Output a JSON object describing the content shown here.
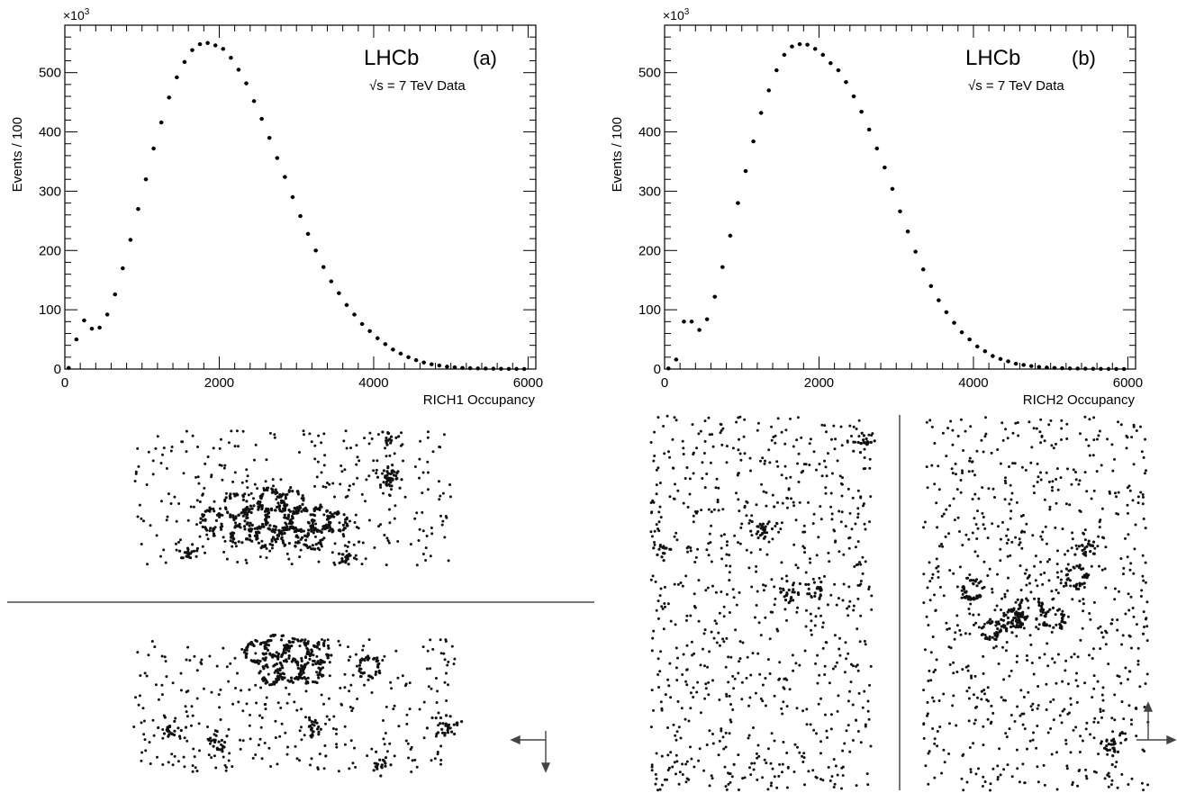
{
  "chart_data": [
    {
      "type": "scatter",
      "panel_label": "(a)",
      "experiment": "LHCb",
      "energy_note": "√s = 7 TeV Data",
      "xlabel": "RICH1 Occupancy",
      "ylabel": "Events / 100",
      "y_multiplier": "×10",
      "y_multiplier_exp": "3",
      "xlim": [
        0,
        6100
      ],
      "ylim": [
        0,
        580
      ],
      "xticks": [
        0,
        2000,
        4000,
        6000
      ],
      "yticks": [
        0,
        100,
        200,
        300,
        400,
        500
      ],
      "grid": false,
      "legend": "none",
      "series": [
        {
          "x": [
            50,
            150,
            250,
            350,
            450,
            550,
            650,
            750,
            850,
            950,
            1050,
            1150,
            1250,
            1350,
            1450,
            1550,
            1650,
            1750,
            1850,
            1950,
            2050,
            2150,
            2250,
            2350,
            2450,
            2550,
            2650,
            2750,
            2850,
            2950,
            3050,
            3150,
            3250,
            3350,
            3450,
            3550,
            3650,
            3750,
            3850,
            3950,
            4050,
            4150,
            4250,
            4350,
            4450,
            4550,
            4650,
            4750,
            4850,
            4950,
            5050,
            5150,
            5250,
            5350,
            5450,
            5550,
            5650,
            5750,
            5850,
            5950
          ],
          "y": [
            2,
            50,
            82,
            68,
            70,
            92,
            126,
            170,
            218,
            270,
            320,
            372,
            416,
            458,
            492,
            518,
            538,
            548,
            550,
            546,
            540,
            525,
            505,
            482,
            452,
            422,
            390,
            356,
            324,
            290,
            258,
            228,
            200,
            172,
            148,
            128,
            108,
            92,
            76,
            64,
            52,
            42,
            33,
            26,
            20,
            15,
            11,
            8,
            6,
            4,
            3,
            2,
            1.5,
            1,
            0.8,
            0.6,
            0.4,
            0.3,
            0.2,
            0.1
          ]
        }
      ]
    },
    {
      "type": "scatter",
      "panel_label": "(b)",
      "experiment": "LHCb",
      "energy_note": "√s = 7 TeV Data",
      "xlabel": "RICH2 Occupancy",
      "ylabel": "Events / 100",
      "y_multiplier": "×10",
      "y_multiplier_exp": "3",
      "xlim": [
        0,
        6100
      ],
      "ylim": [
        0,
        580
      ],
      "xticks": [
        0,
        2000,
        4000,
        6000
      ],
      "yticks": [
        0,
        100,
        200,
        300,
        400,
        500
      ],
      "grid": false,
      "legend": "none",
      "series": [
        {
          "x": [
            50,
            150,
            250,
            350,
            450,
            550,
            650,
            750,
            850,
            950,
            1050,
            1150,
            1250,
            1350,
            1450,
            1550,
            1650,
            1750,
            1850,
            1950,
            2050,
            2150,
            2250,
            2350,
            2450,
            2550,
            2650,
            2750,
            2850,
            2950,
            3050,
            3150,
            3250,
            3350,
            3450,
            3550,
            3650,
            3750,
            3850,
            3950,
            4050,
            4150,
            4250,
            4350,
            4450,
            4550,
            4650,
            4750,
            4850,
            4950,
            5050,
            5150,
            5250,
            5350,
            5450,
            5550,
            5650,
            5750,
            5850,
            5950
          ],
          "y": [
            1,
            16,
            80,
            80,
            66,
            84,
            122,
            172,
            225,
            280,
            334,
            384,
            432,
            470,
            504,
            530,
            544,
            548,
            547,
            540,
            530,
            516,
            504,
            484,
            460,
            434,
            404,
            372,
            340,
            304,
            266,
            232,
            198,
            168,
            140,
            116,
            96,
            78,
            62,
            50,
            38,
            30,
            22,
            17,
            13,
            9,
            7,
            5,
            3.5,
            2.5,
            2,
            1.4,
            1,
            0.8,
            0.6,
            0.4,
            0.3,
            0.2,
            0.1,
            0.1
          ]
        }
      ]
    }
  ],
  "event_display": {
    "description_free": true,
    "rich1_arrow_axes": "left-down",
    "rich2_arrow_axes": "up-right"
  }
}
